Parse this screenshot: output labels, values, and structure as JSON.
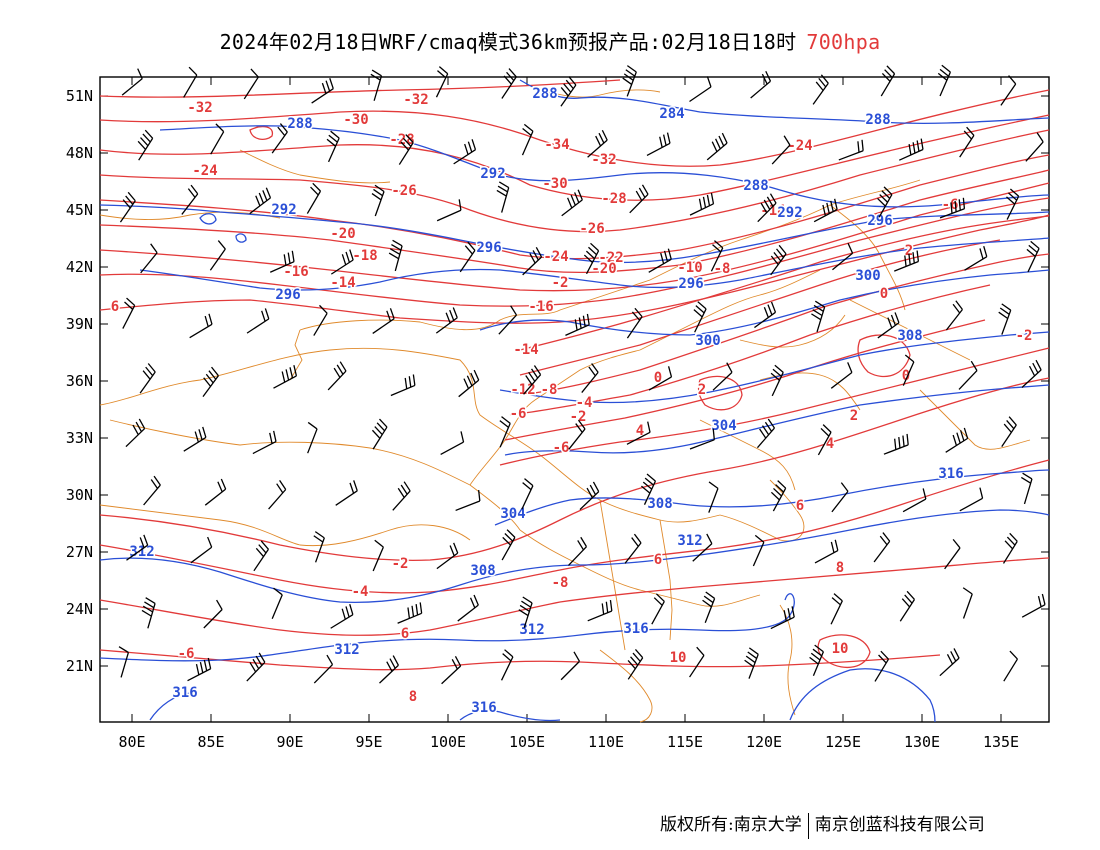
{
  "title": {
    "main": "2024年02月18日WRF/cmaq模式36km预报产品:02月18日18时",
    "level": "700hpa",
    "level_color": "#e23a3a"
  },
  "axes": {
    "lat_ticks": [
      "51N",
      "48N",
      "45N",
      "42N",
      "39N",
      "36N",
      "33N",
      "30N",
      "27N",
      "24N",
      "21N"
    ],
    "lon_ticks": [
      "80E",
      "85E",
      "90E",
      "95E",
      "100E",
      "105E",
      "110E",
      "115E",
      "120E",
      "125E",
      "130E",
      "135E"
    ]
  },
  "colors": {
    "temperature": "#e23a3a",
    "geopotential": "#2a4fd6",
    "boundary": "#e08a2c",
    "wind": "#000000"
  },
  "temperature_labels": [
    {
      "text": "-32"
    },
    {
      "text": "-30"
    },
    {
      "text": "-32"
    },
    {
      "text": "-28"
    },
    {
      "text": "-26"
    },
    {
      "text": "-24"
    },
    {
      "text": "-34"
    },
    {
      "text": "-32"
    },
    {
      "text": "-30"
    },
    {
      "text": "-28"
    },
    {
      "text": "-24"
    },
    {
      "text": "-14"
    },
    {
      "text": "-6"
    },
    {
      "text": "-20"
    },
    {
      "text": "-18"
    },
    {
      "text": "-16"
    },
    {
      "text": "-14"
    },
    {
      "text": "-26"
    },
    {
      "text": "-24"
    },
    {
      "text": "-22"
    },
    {
      "text": "-20"
    },
    {
      "text": "-16"
    },
    {
      "text": "-10"
    },
    {
      "text": "-8"
    },
    {
      "text": "-14"
    },
    {
      "text": "-12"
    },
    {
      "text": "-8"
    },
    {
      "text": "-6"
    },
    {
      "text": "-4"
    },
    {
      "text": "-2"
    },
    {
      "text": "0"
    },
    {
      "text": "2"
    },
    {
      "text": "-6"
    },
    {
      "text": "4"
    },
    {
      "text": "2"
    },
    {
      "text": "0"
    },
    {
      "text": "-2"
    },
    {
      "text": "0"
    },
    {
      "text": "4"
    },
    {
      "text": "6"
    },
    {
      "text": "-2"
    },
    {
      "text": "-4"
    },
    {
      "text": "-6"
    },
    {
      "text": "-8"
    },
    {
      "text": "6"
    },
    {
      "text": "8"
    },
    {
      "text": "6"
    },
    {
      "text": "8"
    },
    {
      "text": "10"
    },
    {
      "text": "10"
    },
    {
      "text": "6"
    },
    {
      "text": "-2"
    },
    {
      "text": "2"
    }
  ],
  "height_labels": [
    {
      "text": "288"
    },
    {
      "text": "288"
    },
    {
      "text": "284"
    },
    {
      "text": "288"
    },
    {
      "text": "292"
    },
    {
      "text": "292"
    },
    {
      "text": "288"
    },
    {
      "text": "292"
    },
    {
      "text": "296"
    },
    {
      "text": "296"
    },
    {
      "text": "296"
    },
    {
      "text": "296"
    },
    {
      "text": "300"
    },
    {
      "text": "300"
    },
    {
      "text": "308"
    },
    {
      "text": "304"
    },
    {
      "text": "304"
    },
    {
      "text": "308"
    },
    {
      "text": "312"
    },
    {
      "text": "316"
    },
    {
      "text": "312"
    },
    {
      "text": "308"
    },
    {
      "text": "312"
    },
    {
      "text": "316"
    },
    {
      "text": "312"
    },
    {
      "text": "316"
    },
    {
      "text": "316"
    }
  ],
  "footer": {
    "left": "版权所有:南京大学",
    "right": "南京创蓝科技有限公司"
  }
}
